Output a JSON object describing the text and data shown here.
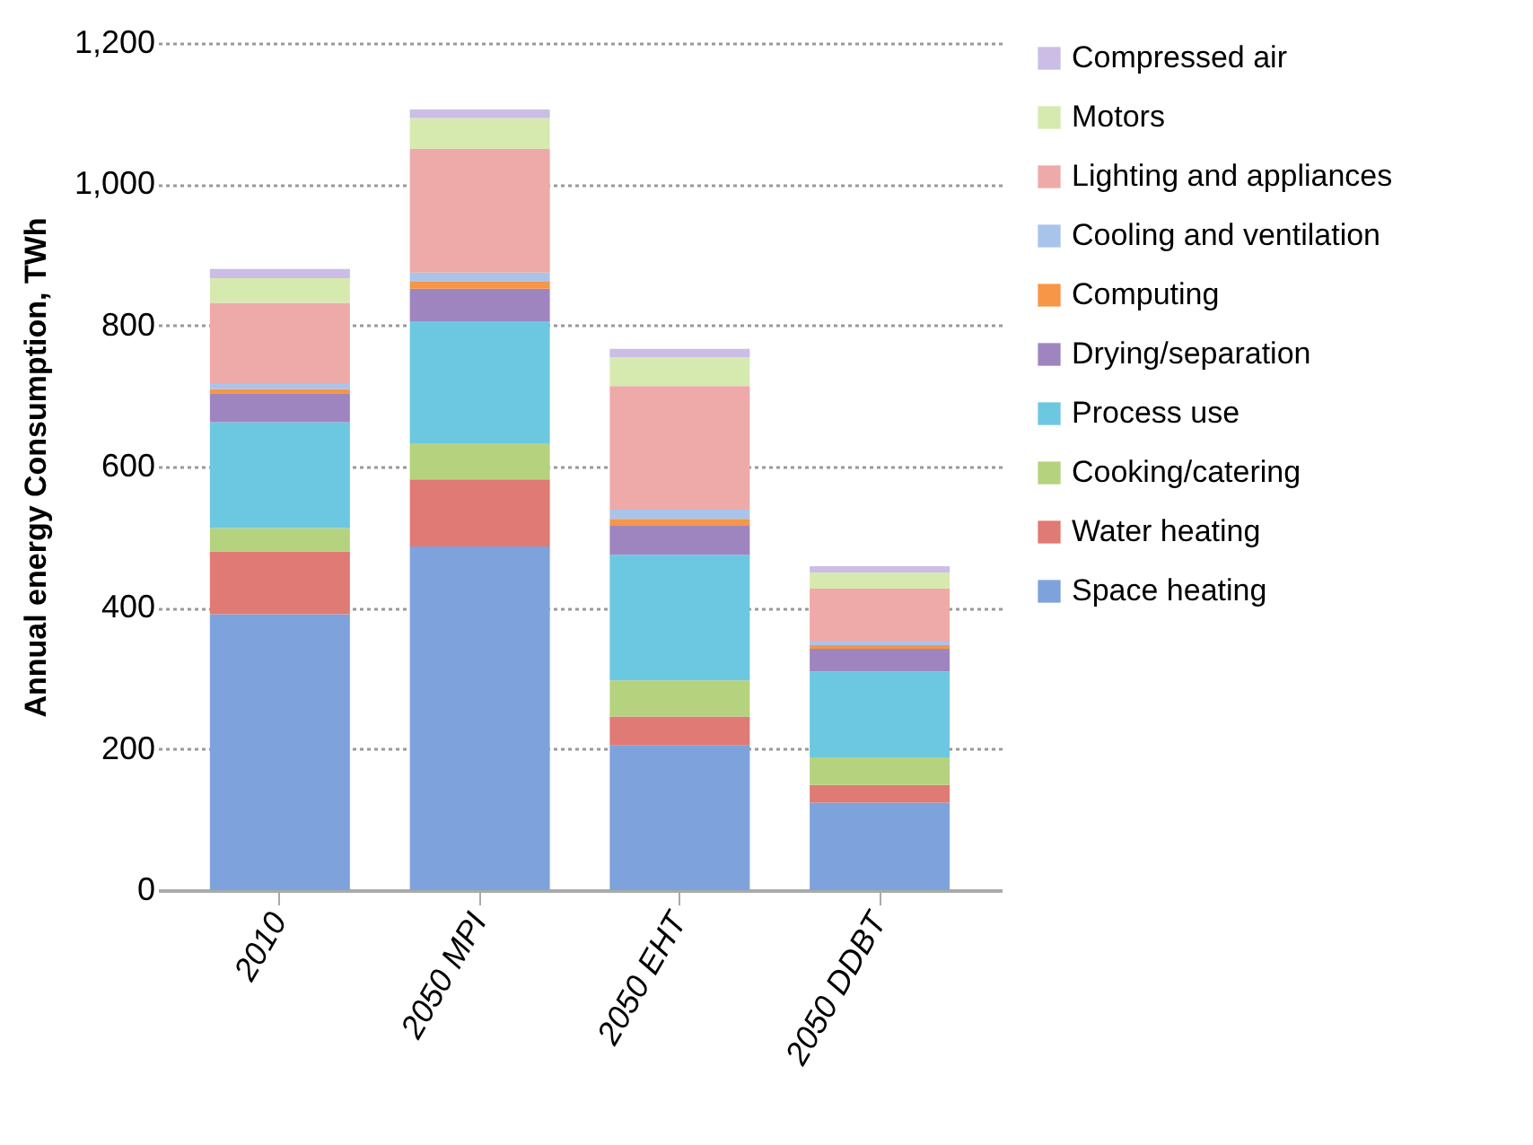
{
  "chart_data": {
    "type": "bar",
    "stacked": true,
    "ylabel": "Annual energy Consumption, TWh",
    "categories": [
      "2010",
      "2050 MPI",
      "2050 EHT",
      "2050 DDBT"
    ],
    "series": [
      {
        "name": "Space heating",
        "color": "#7ea3dc",
        "values": [
          391,
          487,
          205,
          124
        ]
      },
      {
        "name": "Water heating",
        "color": "#e07a74",
        "values": [
          89,
          95,
          41,
          25
        ]
      },
      {
        "name": "Cooking/catering",
        "color": "#b5d37e",
        "values": [
          33,
          51,
          51,
          39
        ]
      },
      {
        "name": "Process use",
        "color": "#6cc8e0",
        "values": [
          150,
          173,
          178,
          122
        ]
      },
      {
        "name": "Drying/separation",
        "color": "#9e85c0",
        "values": [
          41,
          46,
          41,
          32
        ]
      },
      {
        "name": "Computing",
        "color": "#f79646",
        "values": [
          6,
          10,
          10,
          5
        ]
      },
      {
        "name": "Cooling and ventilation",
        "color": "#a9c4eb",
        "values": [
          7,
          13,
          13,
          5
        ]
      },
      {
        "name": "Lighting and appliances",
        "color": "#eeaaa8",
        "values": [
          115,
          175,
          175,
          75
        ]
      },
      {
        "name": "Motors",
        "color": "#d6eab0",
        "values": [
          35,
          44,
          41,
          23
        ]
      },
      {
        "name": "Compressed air",
        "color": "#cbbde6",
        "values": [
          13,
          12,
          12,
          9
        ]
      }
    ],
    "ylim": [
      0,
      1200
    ],
    "yticks": [
      0,
      200,
      400,
      600,
      800,
      {
        "value": 1000,
        "label": "1,000"
      },
      {
        "value": 1200,
        "label": "1,200"
      }
    ],
    "grid": "y",
    "legend": "right"
  }
}
